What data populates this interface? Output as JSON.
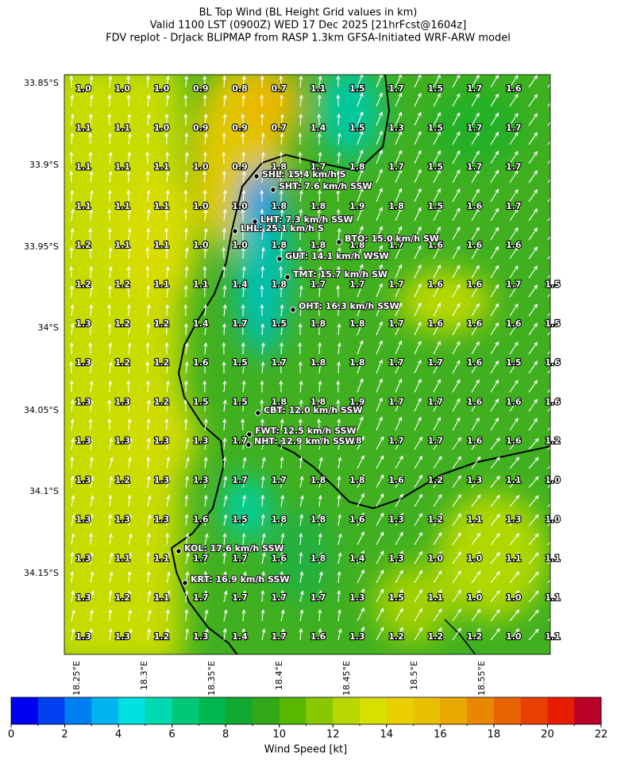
{
  "title": {
    "lines": [
      "BL Top Wind (BL Height Grid values in km)",
      "Valid 1100 LST (0900Z) WED 17 Dec 2025 [21hrFcst@1604z]",
      "FDV replot - DrJack BLIPMAP from RASP 1.3km GFSA-Initiated WRF-ARW model"
    ]
  },
  "map": {
    "grid_values": [
      [
        "1.0",
        "1.0",
        "1.0",
        "0.9",
        "0.8",
        "0.7",
        "1.1",
        "1.5",
        "1.7",
        "1.5",
        "1.7",
        "1.6",
        null
      ],
      [
        "1.1",
        "1.1",
        "1.0",
        "0.9",
        "0.9",
        "0.7",
        "1.4",
        "1.5",
        "1.3",
        "1.5",
        "1.7",
        "1.7",
        null
      ],
      [
        "1.1",
        "1.1",
        "1.1",
        "1.0",
        "0.9",
        "1.8",
        "1.7",
        "1.8",
        "1.7",
        "1.5",
        "1.7",
        "1.7",
        null
      ],
      [
        "1.1",
        "1.1",
        "1.1",
        "1.0",
        "1.0",
        "1.8",
        "1.8",
        "1.9",
        "1.8",
        "1.5",
        "1.6",
        "1.7",
        null
      ],
      [
        "1.2",
        "1.1",
        "1.1",
        "1.0",
        "1.0",
        "1.8",
        "1.8",
        "1.8",
        "1.7",
        "1.6",
        "1.6",
        "1.6",
        null
      ],
      [
        "1.2",
        "1.2",
        "1.1",
        "1.1",
        "1.4",
        "1.8",
        "1.7",
        "1.7",
        "1.7",
        "1.6",
        "1.6",
        "1.7",
        "1.5"
      ],
      [
        "1.3",
        "1.2",
        "1.2",
        "1.4",
        "1.7",
        "1.5",
        "1.8",
        "1.8",
        "1.7",
        "1.6",
        "1.6",
        "1.6",
        "1.5"
      ],
      [
        "1.3",
        "1.2",
        "1.2",
        "1.6",
        "1.5",
        "1.7",
        "1.8",
        "1.8",
        "1.7",
        "1.7",
        "1.6",
        "1.5",
        "1.6"
      ],
      [
        "1.3",
        "1.3",
        "1.2",
        "1.5",
        "1.5",
        "1.8",
        "1.8",
        "1.9",
        "1.7",
        "1.7",
        "1.6",
        "1.6",
        "1.6"
      ],
      [
        "1.3",
        "1.3",
        "1.3",
        "1.3",
        "1.7",
        null,
        null,
        ".8",
        "1.7",
        "1.7",
        "1.6",
        "1.6",
        "1.2"
      ],
      [
        "1.3",
        "1.2",
        "1.3",
        "1.3",
        "1.7",
        "1.7",
        "1.8",
        "1.8",
        "1.6",
        "1.2",
        "1.3",
        "1.1",
        "1.0"
      ],
      [
        "1.3",
        "1.3",
        "1.3",
        "1.6",
        "1.5",
        "1.8",
        "1.8",
        "1.6",
        "1.3",
        "1.2",
        "1.1",
        "1.3",
        "1.0"
      ],
      [
        "1.3",
        "1.1",
        "1.1",
        "1.7",
        "1.7",
        "1.6",
        "1.8",
        "1.4",
        "1.3",
        "1.0",
        "1.0",
        "1.1",
        "1.1"
      ],
      [
        "1.3",
        "1.2",
        "1.1",
        "1.7",
        "1.7",
        "1.7",
        "1.7",
        "1.3",
        "1.5",
        "1.1",
        "1.0",
        "1.0",
        "1.1"
      ],
      [
        "1.3",
        "1.3",
        "1.2",
        "1.3",
        "1.4",
        "1.7",
        "1.6",
        "1.3",
        "1.2",
        "1.2",
        "1.2",
        "1.0",
        "1.1"
      ]
    ],
    "stations": [
      "SHL: 15.4 km/h S",
      "SHT: 7.6 km/h SSW",
      "LHT: 7.3 km/h SSW",
      "LHL: 25.1 km/h S",
      "BTO: 15.0 km/h SW",
      "GUT: 14.1 km/h WSW",
      "TMT: 15.7 km/h SW",
      "OHT: 16.3 km/h SSW",
      "CBT: 12.0 km/h SSW",
      "FWT: 12.5 km/h SSW",
      "NHT: 12.9 km/h SSW",
      "KOL: 17.6 km/h SSW",
      "KRT: 16.9 km/h SSW"
    ],
    "lat_ticks": [
      "33.85°S",
      "33.9°S",
      "33.95°S",
      "34°S",
      "34.05°S",
      "34.1°S",
      "34.15°S"
    ],
    "lon_ticks": [
      "18.25°E",
      "18.3°E",
      "18.35°E",
      "18.4°E",
      "18.45°E",
      "18.5°E",
      "18.55°E"
    ]
  },
  "colorbar": {
    "label": "Wind Speed [kt]",
    "range": [
      0,
      22
    ],
    "ticks": [
      0,
      2,
      4,
      6,
      8,
      10,
      12,
      14,
      16,
      18,
      20,
      22
    ],
    "colors": [
      "#0000f0",
      "#0040f0",
      "#0080f0",
      "#00b4f0",
      "#00e0e0",
      "#00d8b0",
      "#00c878",
      "#00b850",
      "#10a830",
      "#30a818",
      "#58b800",
      "#88c800",
      "#b8d800",
      "#d8e000",
      "#e8d000",
      "#e8c000",
      "#e8a800",
      "#e88800",
      "#e86400",
      "#e84000",
      "#e81c00",
      "#b80028"
    ]
  }
}
